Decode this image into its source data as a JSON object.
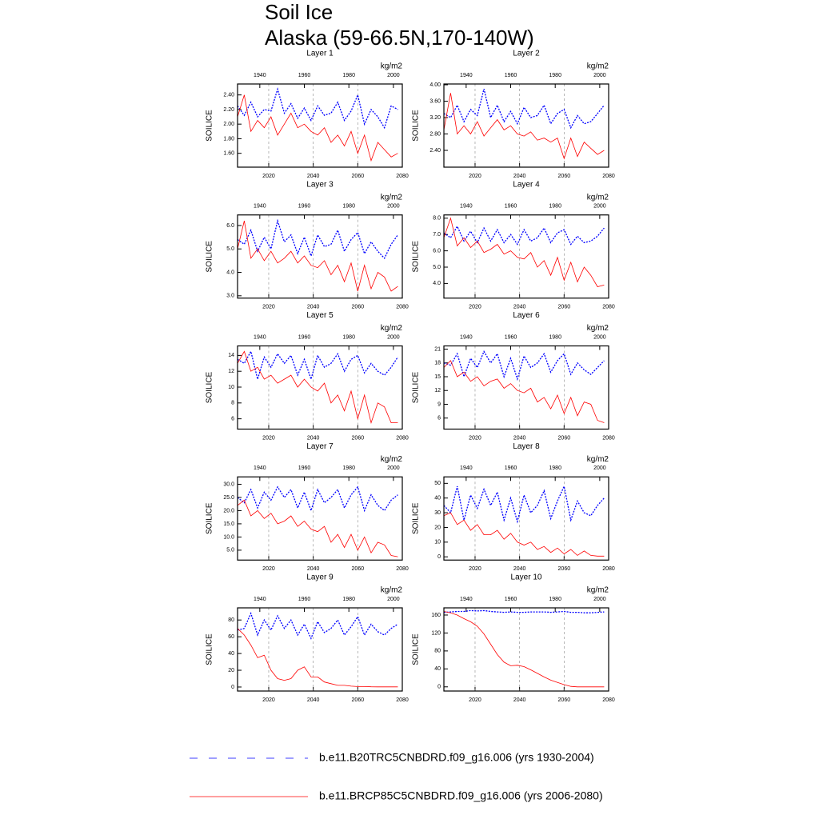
{
  "title": [
    "Soil Ice",
    "Alaska (59-66.5N,170-140W)"
  ],
  "legend": [
    {
      "name": "b.e11.B20TRC5CNBDRD.f09_g16.006 (yrs 1930-2004)",
      "color": "#0000ff",
      "dash": true
    },
    {
      "name": "b.e11.BRCP85C5CNBDRD.f09_g16.006 (yrs 2006-2080)",
      "color": "#ff0000",
      "dash": false
    }
  ],
  "x_blue": [
    1930,
    1933,
    1936,
    1939,
    1942,
    1945,
    1948,
    1951,
    1954,
    1957,
    1960,
    1963,
    1966,
    1969,
    1972,
    1975,
    1978,
    1981,
    1984,
    1987,
    1990,
    1993,
    1996,
    1999,
    2002
  ],
  "x_red": [
    2006,
    2009,
    2012,
    2015,
    2018,
    2021,
    2024,
    2027,
    2030,
    2033,
    2036,
    2039,
    2042,
    2045,
    2048,
    2051,
    2054,
    2057,
    2060,
    2063,
    2066,
    2069,
    2072,
    2075,
    2078
  ],
  "chart_data": [
    {
      "type": "line",
      "title": "Layer 1",
      "unit": "kg/m2",
      "ylabel": "SOILICE",
      "xlim": [
        2006,
        2080
      ],
      "xticks": [
        2020,
        2040,
        2060,
        2080
      ],
      "x2lim": [
        1930,
        2004
      ],
      "x2ticks": [
        1940,
        1960,
        1980,
        2000
      ],
      "xgrid": true,
      "ylim": [
        1.41,
        2.55
      ],
      "yticks": [
        {
          "value": 1.6,
          "label": "1.60"
        },
        {
          "value": 1.8,
          "label": "1.80"
        },
        {
          "value": 2.0,
          "label": "2.00"
        },
        {
          "value": 2.2,
          "label": "2.20"
        },
        {
          "value": 2.4,
          "label": "2.40"
        }
      ],
      "series": [
        {
          "color": "#0000ff",
          "axis": "x2",
          "values": [
            2.25,
            2.12,
            2.3,
            2.1,
            2.2,
            2.18,
            2.48,
            2.15,
            2.28,
            2.08,
            2.22,
            2.05,
            2.25,
            2.12,
            2.15,
            2.3,
            2.05,
            2.18,
            2.4,
            2.0,
            2.2,
            2.1,
            1.95,
            2.25,
            2.2
          ]
        },
        {
          "color": "#ff0000",
          "axis": "x",
          "values": [
            2.1,
            2.4,
            1.9,
            2.05,
            1.95,
            2.1,
            1.85,
            2.0,
            2.15,
            1.95,
            2.0,
            1.9,
            1.85,
            1.95,
            1.75,
            1.85,
            1.7,
            1.9,
            1.6,
            1.85,
            1.5,
            1.75,
            1.65,
            1.55,
            1.6
          ]
        }
      ]
    },
    {
      "type": "line",
      "title": "Layer 2",
      "unit": "kg/m2",
      "ylabel": "SOILICE",
      "xlim": [
        2006,
        2080
      ],
      "xticks": [
        2020,
        2040,
        2060,
        2080
      ],
      "x2lim": [
        1930,
        2004
      ],
      "x2ticks": [
        1940,
        1960,
        1980,
        2000
      ],
      "xgrid": true,
      "ylim": [
        1.99,
        4.02
      ],
      "yticks": [
        {
          "value": 2.4,
          "label": "2.40"
        },
        {
          "value": 2.8,
          "label": "2.80"
        },
        {
          "value": 3.2,
          "label": "3.20"
        },
        {
          "value": 3.6,
          "label": "3.60"
        },
        {
          "value": 4.0,
          "label": "4.00"
        }
      ],
      "series": [
        {
          "color": "#0000ff",
          "axis": "x2",
          "values": [
            3.3,
            3.2,
            3.5,
            3.1,
            3.4,
            3.25,
            3.9,
            3.2,
            3.5,
            3.1,
            3.35,
            3.05,
            3.45,
            3.2,
            3.25,
            3.5,
            3.05,
            3.3,
            3.4,
            2.95,
            3.25,
            3.05,
            3.1,
            3.3,
            3.5
          ]
        },
        {
          "color": "#ff0000",
          "axis": "x",
          "values": [
            2.9,
            3.8,
            2.8,
            3.0,
            2.8,
            3.1,
            2.75,
            2.95,
            3.15,
            2.9,
            3.0,
            2.8,
            2.75,
            2.85,
            2.65,
            2.7,
            2.6,
            2.7,
            2.2,
            2.7,
            2.25,
            2.6,
            2.45,
            2.3,
            2.4
          ]
        }
      ]
    },
    {
      "type": "line",
      "title": "Layer 3",
      "unit": "kg/m2",
      "ylabel": "SOILICE",
      "xlim": [
        2006,
        2080
      ],
      "xticks": [
        2020,
        2040,
        2060,
        2080
      ],
      "x2lim": [
        1930,
        2004
      ],
      "x2ticks": [
        1940,
        1960,
        1980,
        2000
      ],
      "xgrid": true,
      "ylim": [
        2.9,
        6.45
      ],
      "yticks": [
        {
          "value": 3,
          "label": "3.0"
        },
        {
          "value": 4,
          "label": "4.0"
        },
        {
          "value": 5,
          "label": "5.0"
        },
        {
          "value": 6,
          "label": "6.0"
        }
      ],
      "series": [
        {
          "color": "#0000ff",
          "axis": "x2",
          "values": [
            5.4,
            5.2,
            5.8,
            4.9,
            5.5,
            5.0,
            6.2,
            5.3,
            5.6,
            4.8,
            5.5,
            4.7,
            5.6,
            5.1,
            5.2,
            5.8,
            4.9,
            5.4,
            5.7,
            4.8,
            5.3,
            4.9,
            4.6,
            5.2,
            5.6
          ]
        },
        {
          "color": "#ff0000",
          "axis": "x",
          "values": [
            5.0,
            6.2,
            4.6,
            5.0,
            4.5,
            4.9,
            4.4,
            4.6,
            4.9,
            4.4,
            4.7,
            4.3,
            4.2,
            4.5,
            3.9,
            4.3,
            3.6,
            4.4,
            3.2,
            4.3,
            3.3,
            4.0,
            3.8,
            3.2,
            3.4
          ]
        }
      ]
    },
    {
      "type": "line",
      "title": "Layer 4",
      "unit": "kg/m2",
      "ylabel": "SOILICE",
      "xlim": [
        2006,
        2080
      ],
      "xticks": [
        2020,
        2040,
        2060,
        2080
      ],
      "x2lim": [
        1930,
        2004
      ],
      "x2ticks": [
        1940,
        1960,
        1980,
        2000
      ],
      "xgrid": true,
      "ylim": [
        3.1,
        8.2
      ],
      "yticks": [
        {
          "value": 4,
          "label": "4.0"
        },
        {
          "value": 5,
          "label": "5.0"
        },
        {
          "value": 6,
          "label": "6.0"
        },
        {
          "value": 7,
          "label": "7.0"
        },
        {
          "value": 8,
          "label": "8.0"
        }
      ],
      "series": [
        {
          "color": "#0000ff",
          "axis": "x2",
          "values": [
            7.1,
            6.8,
            7.5,
            6.6,
            7.2,
            6.5,
            7.4,
            6.6,
            7.3,
            6.5,
            7.0,
            6.4,
            7.3,
            6.6,
            6.8,
            7.4,
            6.5,
            7.1,
            7.3,
            6.4,
            6.9,
            6.5,
            6.6,
            6.9,
            7.4
          ]
        },
        {
          "color": "#ff0000",
          "axis": "x",
          "values": [
            6.8,
            8.0,
            6.3,
            6.8,
            6.2,
            6.6,
            5.9,
            6.1,
            6.4,
            5.8,
            6.0,
            5.6,
            5.5,
            5.9,
            5.0,
            5.4,
            4.5,
            5.6,
            4.2,
            5.3,
            4.1,
            5.0,
            4.5,
            3.8,
            3.9
          ]
        }
      ]
    },
    {
      "type": "line",
      "title": "Layer 5",
      "unit": "kg/m2",
      "ylabel": "SOILICE",
      "xlim": [
        2006,
        2080
      ],
      "xticks": [
        2020,
        2040,
        2060,
        2080
      ],
      "x2lim": [
        1930,
        2004
      ],
      "x2ticks": [
        1940,
        1960,
        1980,
        2000
      ],
      "xgrid": true,
      "ylim": [
        4.7,
        15.2
      ],
      "yticks": [
        6,
        8,
        10,
        12,
        14
      ],
      "series": [
        {
          "color": "#0000ff",
          "axis": "x2",
          "values": [
            13.5,
            13,
            14.5,
            11,
            13.8,
            12.5,
            14.2,
            13,
            14,
            11.5,
            13.5,
            11,
            14,
            12.5,
            13,
            14.2,
            12,
            13.5,
            14,
            11.8,
            13,
            12,
            11.5,
            12.5,
            13.8
          ]
        },
        {
          "color": "#ff0000",
          "axis": "x",
          "values": [
            13,
            14.5,
            12,
            12.5,
            11,
            11.5,
            10.5,
            11,
            11.5,
            10,
            11,
            10,
            9.5,
            10.5,
            8,
            9,
            7,
            9.5,
            6,
            9,
            5.5,
            8,
            7.5,
            5.5,
            5.5
          ]
        }
      ]
    },
    {
      "type": "line",
      "title": "Layer 6",
      "unit": "kg/m2",
      "ylabel": "SOILICE",
      "xlim": [
        2006,
        2080
      ],
      "xticks": [
        2020,
        2040,
        2060,
        2080
      ],
      "x2lim": [
        1930,
        2004
      ],
      "x2ticks": [
        1940,
        1960,
        1980,
        2000
      ],
      "xgrid": true,
      "ylim": [
        3.6,
        21.7
      ],
      "yticks": [
        6,
        9,
        12,
        15,
        18,
        21
      ],
      "series": [
        {
          "color": "#0000ff",
          "axis": "x2",
          "values": [
            18,
            17.5,
            20,
            15,
            19,
            17,
            20.5,
            18,
            20,
            15,
            19,
            14.5,
            19.5,
            17,
            18,
            20,
            16,
            18.5,
            20,
            15.5,
            18,
            16.5,
            15.5,
            17,
            18.5
          ]
        },
        {
          "color": "#ff0000",
          "axis": "x",
          "values": [
            17,
            18.5,
            15,
            16,
            14,
            15,
            13,
            14,
            14.5,
            12.5,
            13.5,
            12,
            11.5,
            12.5,
            9.5,
            10.5,
            8,
            11,
            7,
            10.5,
            6.5,
            9.5,
            9,
            5.5,
            5
          ]
        }
      ]
    },
    {
      "type": "line",
      "title": "Layer 7",
      "unit": "kg/m2",
      "ylabel": "SOILICE",
      "xlim": [
        2006,
        2080
      ],
      "xticks": [
        2020,
        2040,
        2060,
        2080
      ],
      "x2lim": [
        1930,
        2004
      ],
      "x2ticks": [
        1940,
        1960,
        1980,
        2000
      ],
      "xgrid": true,
      "ylim": [
        1.25,
        32.8
      ],
      "yticks": [
        {
          "value": 5,
          "label": "5.0"
        },
        {
          "value": 10,
          "label": "10.0"
        },
        {
          "value": 15,
          "label": "15.0"
        },
        {
          "value": 20,
          "label": "20.0"
        },
        {
          "value": 25,
          "label": "25.0"
        },
        {
          "value": 30,
          "label": "30.0"
        }
      ],
      "series": [
        {
          "color": "#0000ff",
          "axis": "x2",
          "values": [
            25,
            23,
            28,
            21,
            27,
            24,
            29,
            25,
            28,
            21,
            27,
            20,
            28,
            23,
            25,
            28,
            21,
            26,
            29,
            20,
            26,
            22,
            20,
            24,
            26
          ]
        },
        {
          "color": "#ff0000",
          "axis": "x",
          "values": [
            22,
            24,
            18,
            20,
            17,
            19,
            15,
            16,
            18,
            14,
            16,
            13,
            12,
            14,
            8,
            11,
            6,
            11,
            5,
            10,
            4,
            8,
            7,
            3,
            2.5
          ]
        }
      ]
    },
    {
      "type": "line",
      "title": "Layer 8",
      "unit": "kg/m2",
      "ylabel": "SOILICE",
      "xlim": [
        2006,
        2080
      ],
      "xticks": [
        2020,
        2040,
        2060,
        2080
      ],
      "x2lim": [
        1930,
        2004
      ],
      "x2ticks": [
        1940,
        1960,
        1980,
        2000
      ],
      "xgrid": true,
      "ylim": [
        -2.2,
        54.4
      ],
      "yticks": [
        0,
        10,
        20,
        30,
        40,
        50
      ],
      "series": [
        {
          "color": "#0000ff",
          "axis": "x2",
          "values": [
            35,
            30,
            48,
            25,
            42,
            33,
            46,
            35,
            44,
            25,
            40,
            24,
            42,
            30,
            35,
            45,
            26,
            38,
            48,
            25,
            38,
            30,
            28,
            35,
            40
          ]
        },
        {
          "color": "#ff0000",
          "axis": "x",
          "values": [
            28,
            30,
            22,
            25,
            18,
            22,
            15,
            15,
            18,
            12,
            16,
            10,
            8,
            10,
            5,
            7,
            3,
            6,
            2,
            5,
            1,
            4,
            1,
            0.5,
            0.5
          ]
        }
      ]
    },
    {
      "type": "line",
      "title": "Layer 9",
      "unit": "kg/m2",
      "ylabel": "SOILICE",
      "xlim": [
        2006,
        2080
      ],
      "xticks": [
        2020,
        2040,
        2060,
        2080
      ],
      "x2lim": [
        1930,
        2004
      ],
      "x2ticks": [
        1940,
        1960,
        1980,
        2000
      ],
      "xgrid": true,
      "ylim": [
        -4.8,
        94.5
      ],
      "yticks": [
        0,
        20,
        40,
        60,
        80
      ],
      "series": [
        {
          "color": "#0000ff",
          "axis": "x2",
          "values": [
            68,
            70,
            88,
            62,
            80,
            68,
            85,
            70,
            80,
            62,
            75,
            58,
            78,
            65,
            70,
            80,
            62,
            72,
            84,
            62,
            75,
            66,
            62,
            70,
            75
          ]
        },
        {
          "color": "#ff0000",
          "axis": "x",
          "values": [
            70,
            62,
            50,
            35,
            38,
            20,
            10,
            8,
            10,
            20,
            24,
            12,
            12,
            6,
            4,
            2,
            2,
            1,
            0.5,
            0.5,
            0.3,
            0.2,
            0.2,
            0.2,
            0.2
          ]
        }
      ]
    },
    {
      "type": "line",
      "title": "Layer 10",
      "unit": "kg/m2",
      "ylabel": "SOILICE",
      "xlim": [
        2006,
        2080
      ],
      "xticks": [
        2020,
        2040,
        2060,
        2080
      ],
      "x2lim": [
        1930,
        2004
      ],
      "x2ticks": [
        1940,
        1960,
        1980,
        2000
      ],
      "xgrid": true,
      "ylim": [
        -9.3,
        176
      ],
      "yticks": [
        0,
        40,
        80,
        120,
        160
      ],
      "series": [
        {
          "color": "#0000ff",
          "axis": "x2",
          "values": [
            166,
            167,
            168,
            168,
            170,
            169,
            170,
            168,
            167,
            166,
            167,
            166,
            166,
            167,
            167,
            167,
            166,
            167,
            168,
            166,
            166,
            165,
            165,
            166,
            167
          ]
        },
        {
          "color": "#ff0000",
          "axis": "x",
          "values": [
            168,
            165,
            160,
            152,
            145,
            135,
            118,
            95,
            72,
            55,
            47,
            48,
            45,
            38,
            30,
            22,
            15,
            10,
            5,
            1,
            0,
            0,
            0,
            0,
            0
          ]
        }
      ]
    }
  ]
}
